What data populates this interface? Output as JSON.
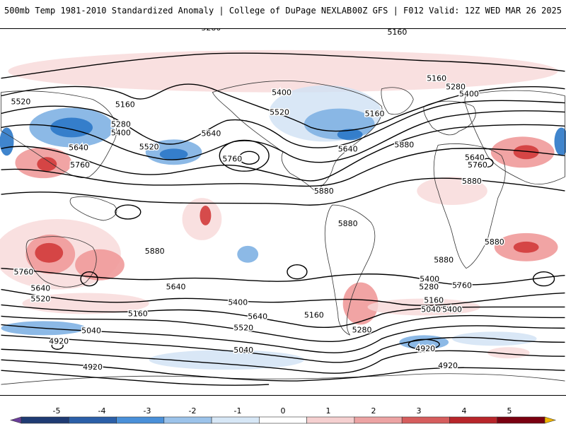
{
  "header": {
    "title": "500mb Temp 1981-2010 Standardized Anomaly | College of DuPage NEXLAB",
    "run_info": "00Z GFS | F012 Valid: 12Z WED MAR 26 2025"
  },
  "contour_labels": [
    "5280",
    "5160",
    "5160",
    "5280",
    "5400",
    "5520",
    "5160",
    "5520",
    "5400",
    "5640",
    "5160",
    "5280",
    "5400",
    "5640",
    "5520",
    "5760",
    "5640",
    "5760",
    "5880",
    "5760",
    "5640",
    "5880",
    "5880",
    "5880",
    "5880",
    "5880",
    "5880",
    "5760",
    "5640",
    "5520",
    "5400",
    "5280",
    "5160",
    "5040",
    "5640",
    "5400",
    "5760",
    "5640",
    "5520",
    "5400",
    "5160",
    "5280",
    "5040",
    "4920",
    "5040",
    "4920",
    "4920",
    "5160",
    "4920"
  ],
  "colorbar": {
    "ticks": [
      "-5",
      "-4",
      "-3",
      "-2",
      "-1",
      "0",
      "1",
      "2",
      "3",
      "4",
      "5"
    ],
    "colors": [
      "#6a3d9a",
      "#1f3b73",
      "#2b5fa8",
      "#4a90d9",
      "#9cc3ea",
      "#d7e7f6",
      "#ffffff",
      "#f5d0d0",
      "#eca3a3",
      "#d65d5d",
      "#b8252a",
      "#7a0010",
      "#f0b400"
    ]
  },
  "anomaly_colors": {
    "cold_strong": "#2b78c8",
    "cold": "#7fb1e3",
    "cold_light": "#cfe1f4",
    "warm_light": "#f8d8d8",
    "warm": "#ef9a9a",
    "warm_strong": "#d23b3b",
    "warm_extreme": "#9e0f1a"
  }
}
